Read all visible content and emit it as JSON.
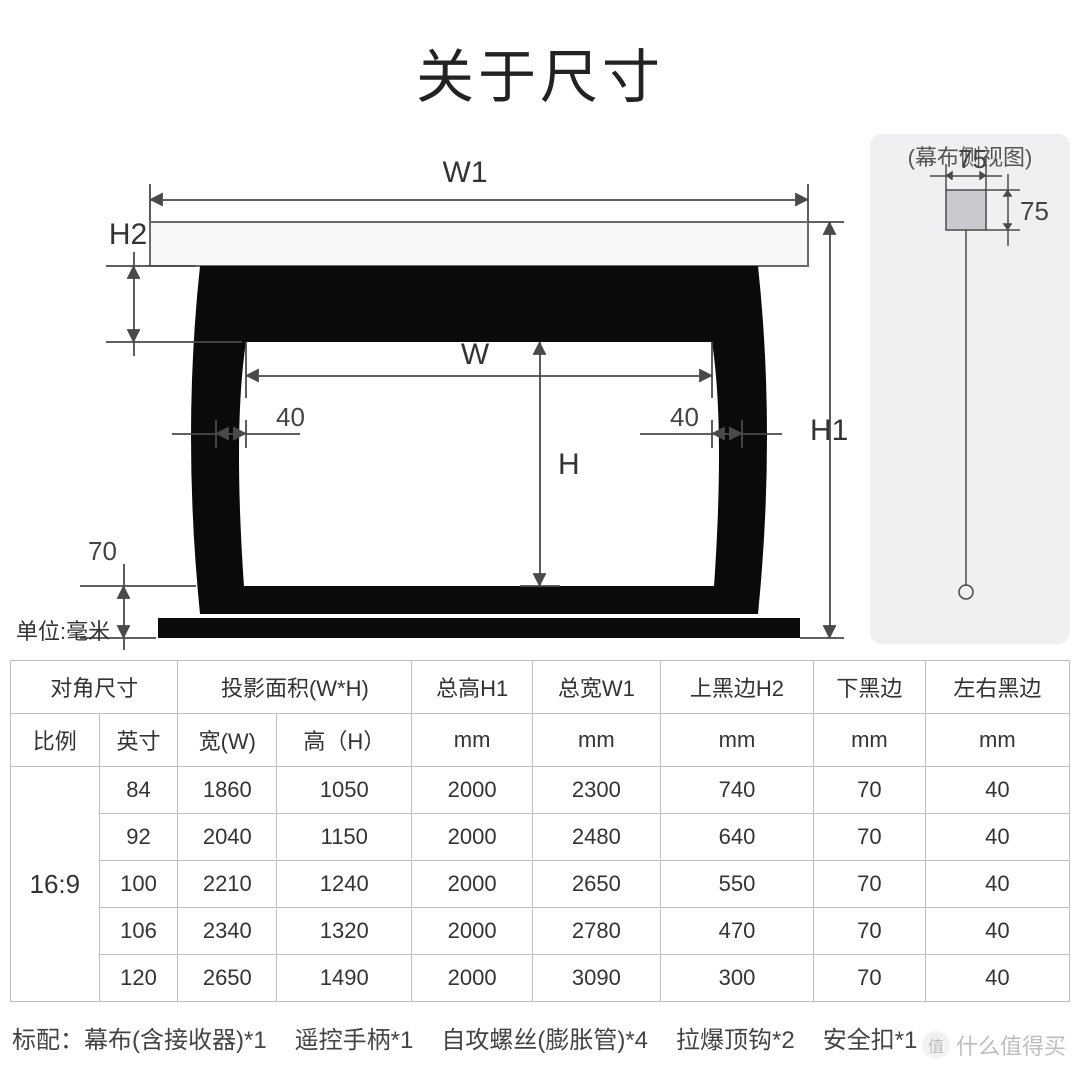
{
  "title": "关于尺寸",
  "unit_label": "单位:毫米",
  "side_view": {
    "title": "(幕布侧视图)",
    "box_w_label": "75",
    "box_h_label": "75",
    "box_fill": "#c8cacf",
    "panel_bg": "#eef0f2",
    "line_color": "#4a4a4a"
  },
  "diagram": {
    "labels": {
      "W1": "W1",
      "W": "W",
      "H": "H",
      "H1": "H1",
      "H2": "H2",
      "side_margin": "40",
      "bottom_margin": "70"
    },
    "colors": {
      "case_fill": "#f7f7f9",
      "case_stroke": "#6a6a6a",
      "screen_housing": "#0a0a0a",
      "viewing_area": "#ffffff",
      "dim_line": "#4a4a4a",
      "text": "#444444"
    }
  },
  "table": {
    "header_row1": [
      "对角尺寸",
      "投影面积(W*H)",
      "总高H1",
      "总宽W1",
      "上黑边H2",
      "下黑边",
      "左右黑边"
    ],
    "header_row2": [
      "比例",
      "英寸",
      "宽(W)",
      "高（H）",
      "mm",
      "mm",
      "mm",
      "mm",
      "mm"
    ],
    "ratio_label": "16:9",
    "rows": [
      [
        "84",
        "1860",
        "1050",
        "2000",
        "2300",
        "740",
        "70",
        "40"
      ],
      [
        "92",
        "2040",
        "1150",
        "2000",
        "2480",
        "640",
        "70",
        "40"
      ],
      [
        "100",
        "2210",
        "1240",
        "2000",
        "2650",
        "550",
        "70",
        "40"
      ],
      [
        "106",
        "2340",
        "1320",
        "2000",
        "2780",
        "470",
        "70",
        "40"
      ],
      [
        "120",
        "2650",
        "1490",
        "2000",
        "3090",
        "300",
        "70",
        "40"
      ]
    ]
  },
  "footnote": {
    "prefix": "标配：",
    "items": [
      "幕布(含接收器)*1",
      "遥控手柄*1",
      "自攻螺丝(膨胀管)*4",
      "拉爆顶钩*2",
      "安全扣*1"
    ]
  },
  "watermark": "什么值得买"
}
